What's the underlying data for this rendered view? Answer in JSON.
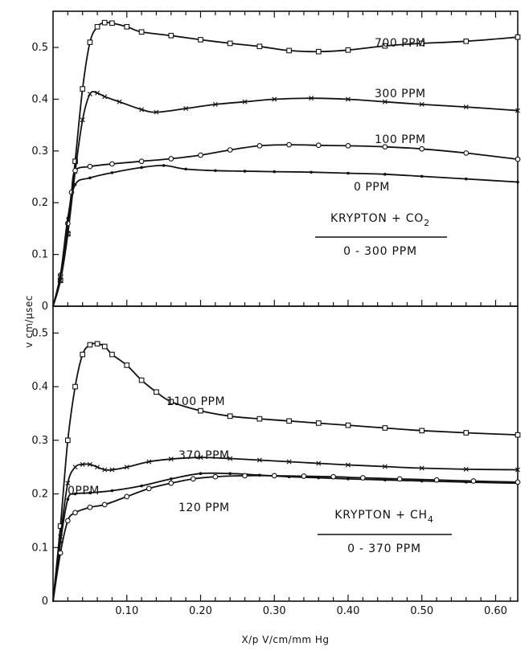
{
  "chart_data": [
    {
      "type": "line",
      "panel": "top",
      "annotation_line1": "KRYPTON + CO",
      "annotation_sub": "2",
      "annotation_line2": "0 - 300 PPM",
      "xlim": [
        0,
        0.63
      ],
      "ylim": [
        0,
        0.57
      ],
      "yticks": [
        0,
        0.1,
        0.2,
        0.3,
        0.4,
        0.5
      ],
      "ytick_labels": [
        "0",
        "0.1",
        "0.2",
        "0.3",
        "0.4",
        "0.5"
      ],
      "series": [
        {
          "name": "700 PPM",
          "marker": "square",
          "x": [
            0,
            0.01,
            0.02,
            0.03,
            0.04,
            0.05,
            0.06,
            0.07,
            0.08,
            0.1,
            0.12,
            0.16,
            0.2,
            0.24,
            0.28,
            0.32,
            0.36,
            0.4,
            0.45,
            0.5,
            0.56,
            0.63
          ],
          "y": [
            0,
            0.05,
            0.14,
            0.28,
            0.42,
            0.51,
            0.54,
            0.548,
            0.547,
            0.54,
            0.53,
            0.523,
            0.515,
            0.508,
            0.502,
            0.494,
            0.492,
            0.495,
            0.503,
            0.508,
            0.512,
            0.52
          ]
        },
        {
          "name": "300 PPM",
          "marker": "x",
          "x": [
            0,
            0.01,
            0.02,
            0.03,
            0.04,
            0.05,
            0.06,
            0.07,
            0.09,
            0.12,
            0.14,
            0.18,
            0.22,
            0.26,
            0.3,
            0.35,
            0.4,
            0.45,
            0.5,
            0.56,
            0.63
          ],
          "y": [
            0,
            0.05,
            0.14,
            0.26,
            0.36,
            0.41,
            0.412,
            0.405,
            0.395,
            0.38,
            0.375,
            0.382,
            0.39,
            0.395,
            0.4,
            0.402,
            0.4,
            0.395,
            0.39,
            0.385,
            0.378
          ]
        },
        {
          "name": "100 PPM",
          "marker": "circle",
          "x": [
            0,
            0.01,
            0.02,
            0.025,
            0.03,
            0.05,
            0.08,
            0.12,
            0.16,
            0.2,
            0.24,
            0.28,
            0.32,
            0.36,
            0.4,
            0.45,
            0.5,
            0.56,
            0.63
          ],
          "y": [
            0,
            0.06,
            0.16,
            0.22,
            0.262,
            0.27,
            0.275,
            0.28,
            0.285,
            0.292,
            0.302,
            0.31,
            0.312,
            0.311,
            0.31,
            0.308,
            0.304,
            0.296,
            0.284
          ]
        },
        {
          "name": "0 PPM",
          "marker": "dot",
          "x": [
            0,
            0.01,
            0.02,
            0.03,
            0.05,
            0.08,
            0.12,
            0.15,
            0.18,
            0.22,
            0.26,
            0.3,
            0.35,
            0.4,
            0.45,
            0.5,
            0.56,
            0.63
          ],
          "y": [
            0,
            0.06,
            0.17,
            0.235,
            0.248,
            0.258,
            0.268,
            0.272,
            0.265,
            0.262,
            0.261,
            0.26,
            0.259,
            0.257,
            0.255,
            0.251,
            0.246,
            0.24
          ]
        }
      ],
      "curve_labels": [
        {
          "text": "700 PPM",
          "x": 0.38,
          "y": 0.545
        },
        {
          "text": "300 PPM",
          "x": 0.38,
          "y": 0.445
        },
        {
          "text": "100 PPM",
          "x": 0.38,
          "y": 0.33
        },
        {
          "text": "0 PPM",
          "x": 0.4,
          "y": 0.255
        }
      ]
    },
    {
      "type": "line",
      "panel": "bottom",
      "annotation_line1": "KRYPTON + CH",
      "annotation_sub": "4",
      "annotation_line2": "0 - 370 PPM",
      "xlim": [
        0,
        0.63
      ],
      "ylim": [
        0,
        0.55
      ],
      "yticks": [
        0,
        0.1,
        0.2,
        0.3,
        0.4,
        0.5
      ],
      "ytick_labels": [
        "0",
        "0.1",
        "0.2",
        "0.3",
        "0.4",
        "0.5"
      ],
      "xticks": [
        0.1,
        0.2,
        0.3,
        0.4,
        0.5,
        0.6
      ],
      "xtick_labels": [
        "0.10",
        "0.20",
        "0.30",
        "0.40",
        "0.50",
        "0.60"
      ],
      "series": [
        {
          "name": "1100 PPM",
          "marker": "square",
          "x": [
            0,
            0.01,
            0.02,
            0.03,
            0.04,
            0.05,
            0.06,
            0.07,
            0.08,
            0.1,
            0.12,
            0.14,
            0.16,
            0.2,
            0.24,
            0.28,
            0.32,
            0.36,
            0.4,
            0.45,
            0.5,
            0.56,
            0.63
          ],
          "y": [
            0,
            0.14,
            0.3,
            0.4,
            0.46,
            0.478,
            0.48,
            0.475,
            0.46,
            0.44,
            0.412,
            0.39,
            0.372,
            0.355,
            0.345,
            0.34,
            0.336,
            0.332,
            0.328,
            0.323,
            0.318,
            0.314,
            0.31
          ]
        },
        {
          "name": "370 PPM",
          "marker": "x",
          "x": [
            0,
            0.01,
            0.02,
            0.03,
            0.04,
            0.05,
            0.06,
            0.07,
            0.08,
            0.1,
            0.13,
            0.16,
            0.2,
            0.24,
            0.28,
            0.32,
            0.36,
            0.4,
            0.45,
            0.5,
            0.56,
            0.63
          ],
          "y": [
            0,
            0.12,
            0.22,
            0.25,
            0.255,
            0.255,
            0.25,
            0.245,
            0.245,
            0.25,
            0.26,
            0.265,
            0.268,
            0.266,
            0.263,
            0.26,
            0.257,
            0.254,
            0.251,
            0.248,
            0.246,
            0.245
          ]
        },
        {
          "name": "0 PPM",
          "marker": "dot",
          "x": [
            0,
            0.01,
            0.02,
            0.03,
            0.05,
            0.08,
            0.12,
            0.16,
            0.2,
            0.24,
            0.28,
            0.32,
            0.36,
            0.4,
            0.45,
            0.5,
            0.56,
            0.63
          ],
          "y": [
            0,
            0.11,
            0.19,
            0.2,
            0.202,
            0.206,
            0.215,
            0.228,
            0.238,
            0.238,
            0.235,
            0.232,
            0.23,
            0.228,
            0.226,
            0.224,
            0.222,
            0.22
          ]
        },
        {
          "name": "120 PPM",
          "marker": "circle",
          "x": [
            0,
            0.01,
            0.02,
            0.03,
            0.05,
            0.07,
            0.1,
            0.13,
            0.16,
            0.19,
            0.22,
            0.26,
            0.3,
            0.34,
            0.38,
            0.42,
            0.47,
            0.52,
            0.57,
            0.63
          ],
          "y": [
            0,
            0.09,
            0.15,
            0.165,
            0.175,
            0.18,
            0.195,
            0.21,
            0.22,
            0.228,
            0.232,
            0.234,
            0.234,
            0.233,
            0.232,
            0.23,
            0.228,
            0.226,
            0.224,
            0.222
          ]
        }
      ],
      "curve_labels": [
        {
          "text": "1100 PPM",
          "x": 0.2,
          "y": 0.39
        },
        {
          "text": "370 PPM",
          "x": 0.23,
          "y": 0.285
        },
        {
          "text": "0PPM",
          "x": 0.03,
          "y": 0.225
        },
        {
          "text": "120 PPM",
          "x": 0.23,
          "y": 0.165
        }
      ]
    }
  ],
  "ylabel": "v cm/μsec",
  "xlabel": "X/p V/cm/mm Hg"
}
